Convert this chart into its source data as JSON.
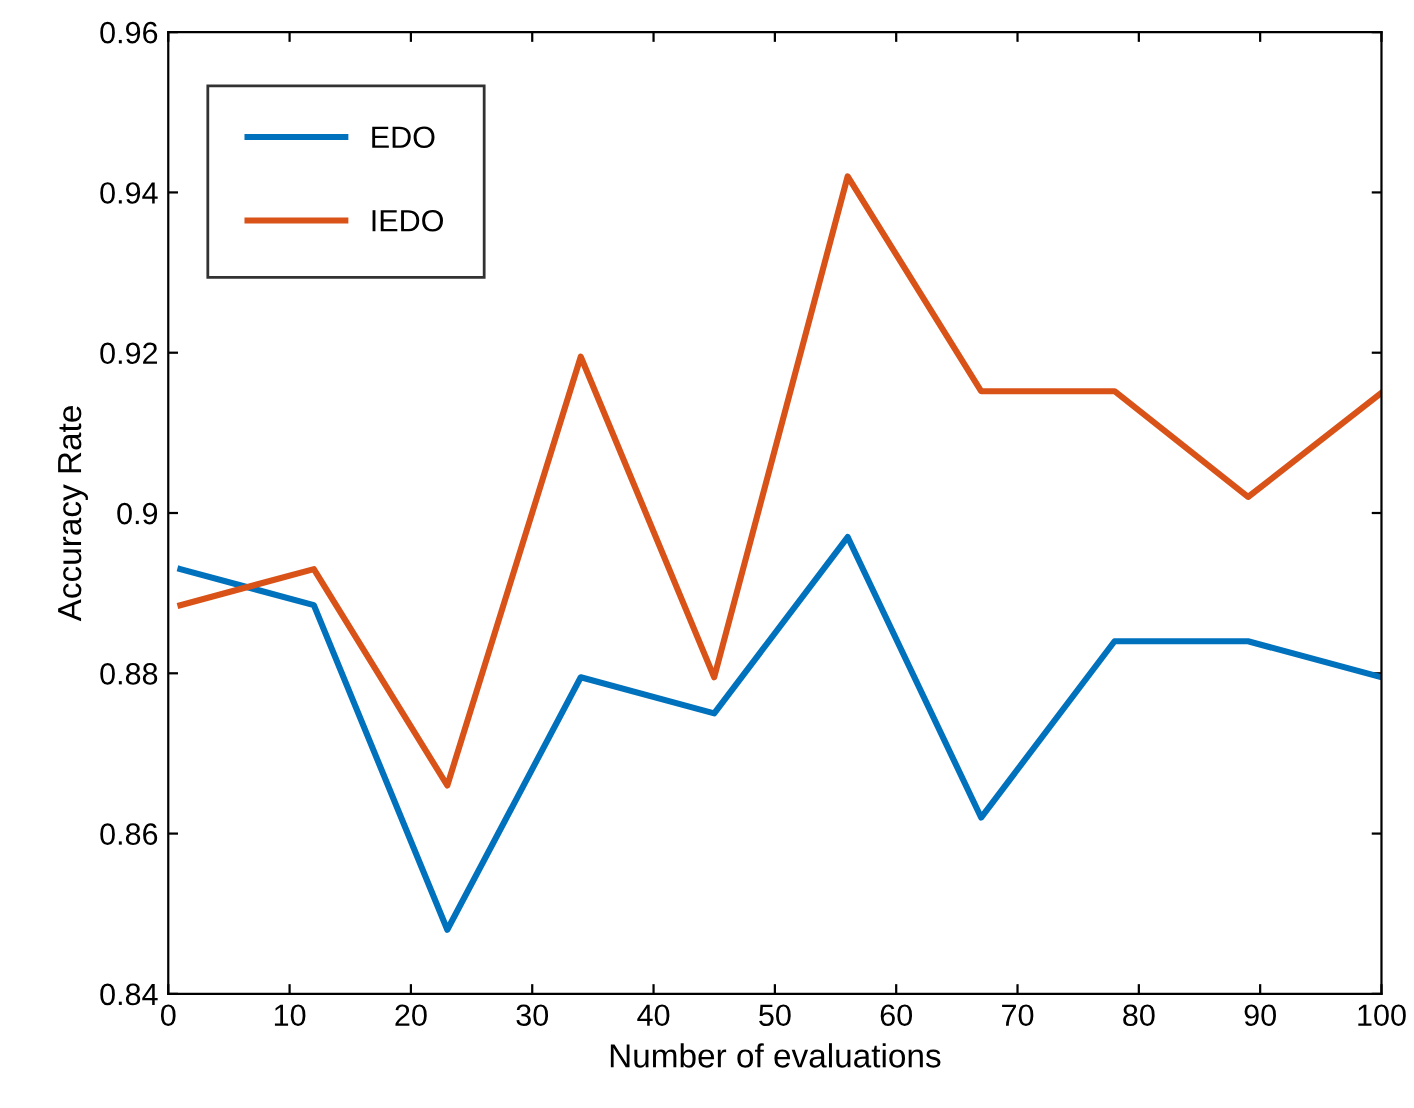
{
  "chart_data": {
    "type": "line",
    "xlabel": "Number of evaluations",
    "ylabel": "Accuracy Rate",
    "x": [
      1,
      12,
      23,
      34,
      45,
      56,
      67,
      78,
      89,
      100
    ],
    "series": [
      {
        "name": "EDO",
        "color": "#0072bd",
        "values": [
          0.893,
          0.8885,
          0.848,
          0.8795,
          0.875,
          0.897,
          0.862,
          0.884,
          0.884,
          0.8795
        ]
      },
      {
        "name": "IEDO",
        "color": "#d95319",
        "values": [
          0.8885,
          0.893,
          0.866,
          0.9195,
          0.8795,
          0.942,
          0.9152,
          0.9152,
          0.902,
          0.915
        ]
      }
    ],
    "xlim": [
      0,
      100
    ],
    "xticks": [
      0,
      10,
      20,
      30,
      40,
      50,
      60,
      70,
      80,
      90,
      100
    ],
    "ylim": [
      0.84,
      0.96
    ],
    "yticks": [
      {
        "value": 0.84,
        "label": "0.84"
      },
      {
        "value": 0.86,
        "label": "0.86"
      },
      {
        "value": 0.88,
        "label": "0.88"
      },
      {
        "value": 0.9,
        "label": "0.9"
      },
      {
        "value": 0.92,
        "label": "0.92"
      },
      {
        "value": 0.94,
        "label": "0.94"
      },
      {
        "value": 0.96,
        "label": "0.96"
      }
    ],
    "grid": false,
    "legend": "top left",
    "marker": "none",
    "line_style": "solid"
  }
}
